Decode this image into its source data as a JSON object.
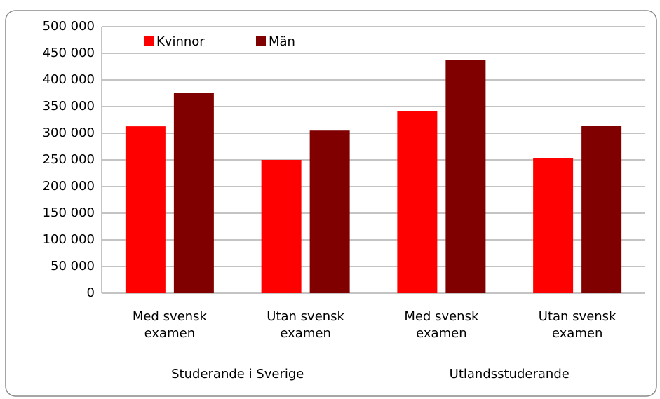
{
  "chart_data": {
    "type": "bar",
    "categories": [
      "Med svensk examen",
      "Utan svensk examen",
      "Med svensk examen",
      "Utan svensk examen"
    ],
    "category_groups": [
      "Studerande i Sverige",
      "Utlandsstuderande"
    ],
    "series": [
      {
        "name": "Kvinnor",
        "color": "#ff0000",
        "values": [
          313000,
          250000,
          341000,
          253000
        ]
      },
      {
        "name": "Män",
        "color": "#800000",
        "values": [
          376000,
          305000,
          438000,
          314000
        ]
      }
    ],
    "ylim": [
      0,
      500000
    ],
    "yticks": [
      0,
      {
        "value": 50000,
        "label": "50 000"
      },
      {
        "value": 100000,
        "label": "100 000"
      },
      {
        "value": 150000,
        "label": "150 000"
      },
      {
        "value": 200000,
        "label": "200 000"
      },
      {
        "value": 250000,
        "label": "250 000"
      },
      {
        "value": 300000,
        "label": "300 000"
      },
      {
        "value": 350000,
        "label": "350 000"
      },
      {
        "value": 400000,
        "label": "400 000"
      },
      {
        "value": 450000,
        "label": "450 000"
      },
      {
        "value": 500000,
        "label": "500 000"
      }
    ],
    "grid": true,
    "legend": "top-left"
  }
}
